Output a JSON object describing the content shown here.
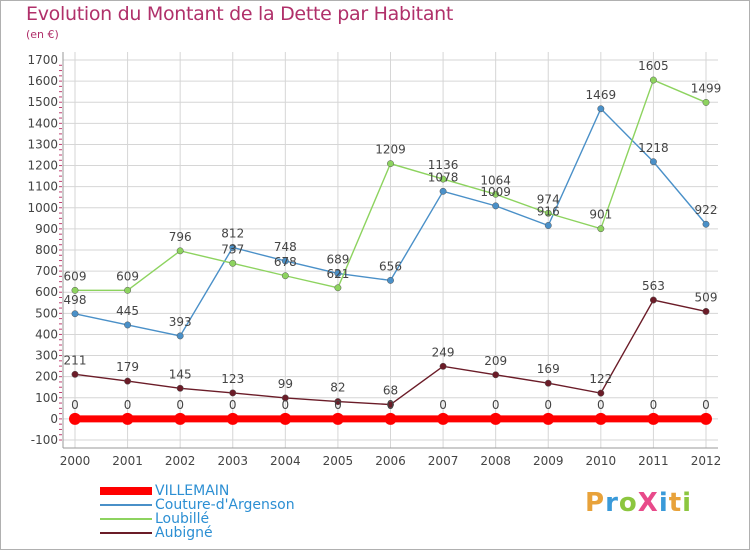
{
  "header": {
    "title": "Evolution du Montant de la Dette par Habitant",
    "subtitle": "(en €)"
  },
  "logo": {
    "text": "ProXiti",
    "colors": [
      "#e8a23a",
      "#3a9ad9",
      "#8cc63f",
      "#e84a8a",
      "#3a9ad9",
      "#e8a23a",
      "#8cc63f"
    ]
  },
  "chart_data": {
    "type": "line",
    "title": "Evolution du Montant de la Dette par Habitant",
    "ylabel": "(en €)",
    "xlabel": "",
    "categories": [
      "2000",
      "2001",
      "2002",
      "2003",
      "2004",
      "2005",
      "2006",
      "2007",
      "2008",
      "2009",
      "2010",
      "2011",
      "2012"
    ],
    "ylim": [
      -100,
      1700
    ],
    "yticks": [
      -100,
      0,
      100,
      200,
      300,
      400,
      500,
      600,
      700,
      800,
      900,
      1000,
      1100,
      1200,
      1300,
      1400,
      1500,
      1600,
      1700
    ],
    "grid": true,
    "legend_position": "bottom-left",
    "series": [
      {
        "name": "VILLEMAIN",
        "color": "#ff0000",
        "values": [
          0,
          0,
          0,
          0,
          0,
          0,
          0,
          0,
          0,
          0,
          0,
          0,
          0
        ]
      },
      {
        "name": "Couture-d'Argenson",
        "color": "#4a90c8",
        "values": [
          498,
          445,
          393,
          812,
          748,
          689,
          656,
          1078,
          1009,
          916,
          1469,
          1218,
          922
        ]
      },
      {
        "name": "Loubillé",
        "color": "#8dd35f",
        "values": [
          609,
          609,
          796,
          737,
          678,
          621,
          1209,
          1136,
          1064,
          974,
          901,
          1605,
          1499
        ]
      },
      {
        "name": "Aubigné",
        "color": "#6b1c28",
        "values": [
          211,
          179,
          145,
          123,
          99,
          82,
          68,
          249,
          209,
          169,
          122,
          563,
          509
        ]
      }
    ]
  }
}
